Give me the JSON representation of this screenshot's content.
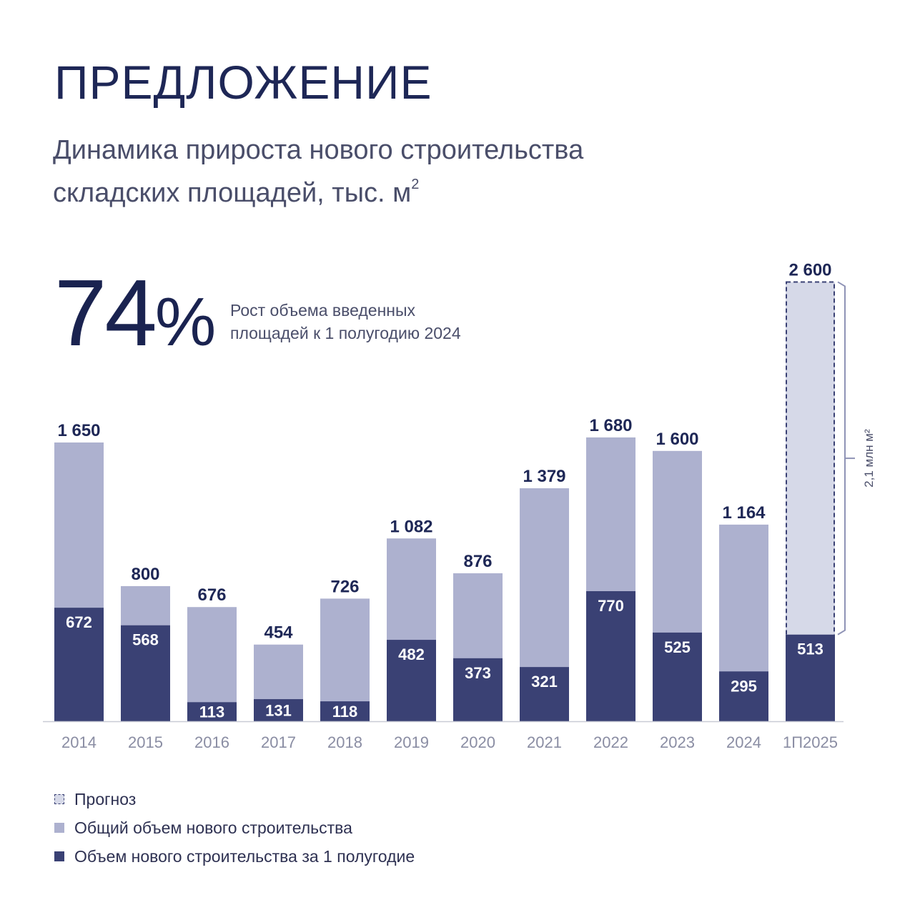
{
  "title": "ПРЕДЛОЖЕНИЕ",
  "subtitle_line1": "Динамика прироста нового строительства",
  "subtitle_line2": "складских площадей, тыс. м",
  "subtitle_sup": "2",
  "kpi": {
    "value": "74",
    "unit": "%",
    "text_line1": "Рост объема введенных",
    "text_line2": "площадей к 1 полугодию 2024"
  },
  "colors": {
    "total": "#adb1cf",
    "half": "#3a4174",
    "forecast": "#d6d9e8",
    "axis": "#c9cbd6",
    "label_dark": "#1e2756",
    "tick": "#8a8da3"
  },
  "legend": {
    "forecast": "Прогноз",
    "total": "Общий объем нового строительства",
    "half": "Объем нового строительства за 1 полугодие"
  },
  "chart_data": {
    "type": "bar",
    "stacked": "overlay",
    "categories": [
      "2014",
      "2015",
      "2016",
      "2017",
      "2018",
      "2019",
      "2020",
      "2021",
      "2022",
      "2023",
      "2024",
      "1П2025"
    ],
    "series": [
      {
        "name": "Общий объем нового строительства",
        "values": [
          1650,
          800,
          676,
          454,
          726,
          1082,
          876,
          1379,
          1680,
          1600,
          1164,
          2600
        ],
        "labels": [
          "1 650",
          "800",
          "676",
          "454",
          "726",
          "1 082",
          "876",
          "1 379",
          "1 680",
          "1 600",
          "1 164",
          "2 600"
        ]
      },
      {
        "name": "Объем нового строительства за 1 полугодие",
        "values": [
          672,
          568,
          113,
          131,
          118,
          482,
          373,
          321,
          770,
          525,
          295,
          513
        ],
        "labels": [
          "672",
          "568",
          "113",
          "131",
          "118",
          "482",
          "373",
          "321",
          "770",
          "525",
          "295",
          "513"
        ]
      }
    ],
    "forecast_category": "1П2025",
    "annotation": "2,1 млн м²",
    "ylim": [
      0,
      2600
    ],
    "grid": false
  }
}
